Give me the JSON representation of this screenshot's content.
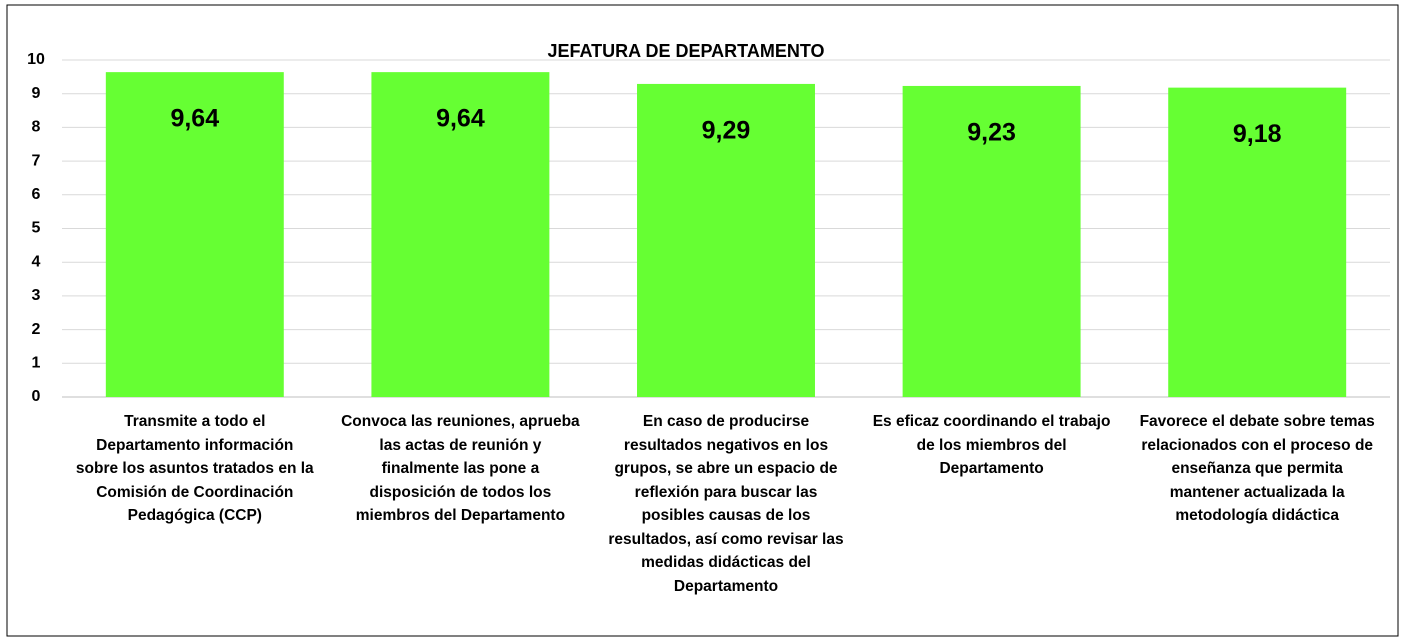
{
  "chart_data": {
    "type": "bar",
    "title": "JEFATURA DE DEPARTAMENTO",
    "categories": [
      "Transmite a todo el Departamento información sobre los asuntos tratados en la Comisión de Coordinación Pedagógica (CCP)",
      "Convoca las reuniones, aprueba las actas de reunión y finalmente las pone a disposición de todos los miembros del Departamento",
      "En caso de producirse resultados negativos en los grupos, se abre un espacio de reflexión para buscar las posibles causas de los resultados, así como revisar las medidas didácticas del Departamento",
      "Es eficaz coordinando el trabajo de los miembros del Departamento",
      "Favorece el debate sobre temas relacionados con el proceso de enseñanza que permita mantener actualizada la metodología didáctica"
    ],
    "values": [
      9.64,
      9.64,
      9.29,
      9.23,
      9.18
    ],
    "value_labels": [
      "9,64",
      "9,64",
      "9,29",
      "9,23",
      "9,18"
    ],
    "color": "#66ff33",
    "ylim": [
      0,
      10
    ],
    "yticks": [
      0,
      1,
      2,
      3,
      4,
      5,
      6,
      7,
      8,
      9,
      10
    ],
    "grid": true
  }
}
